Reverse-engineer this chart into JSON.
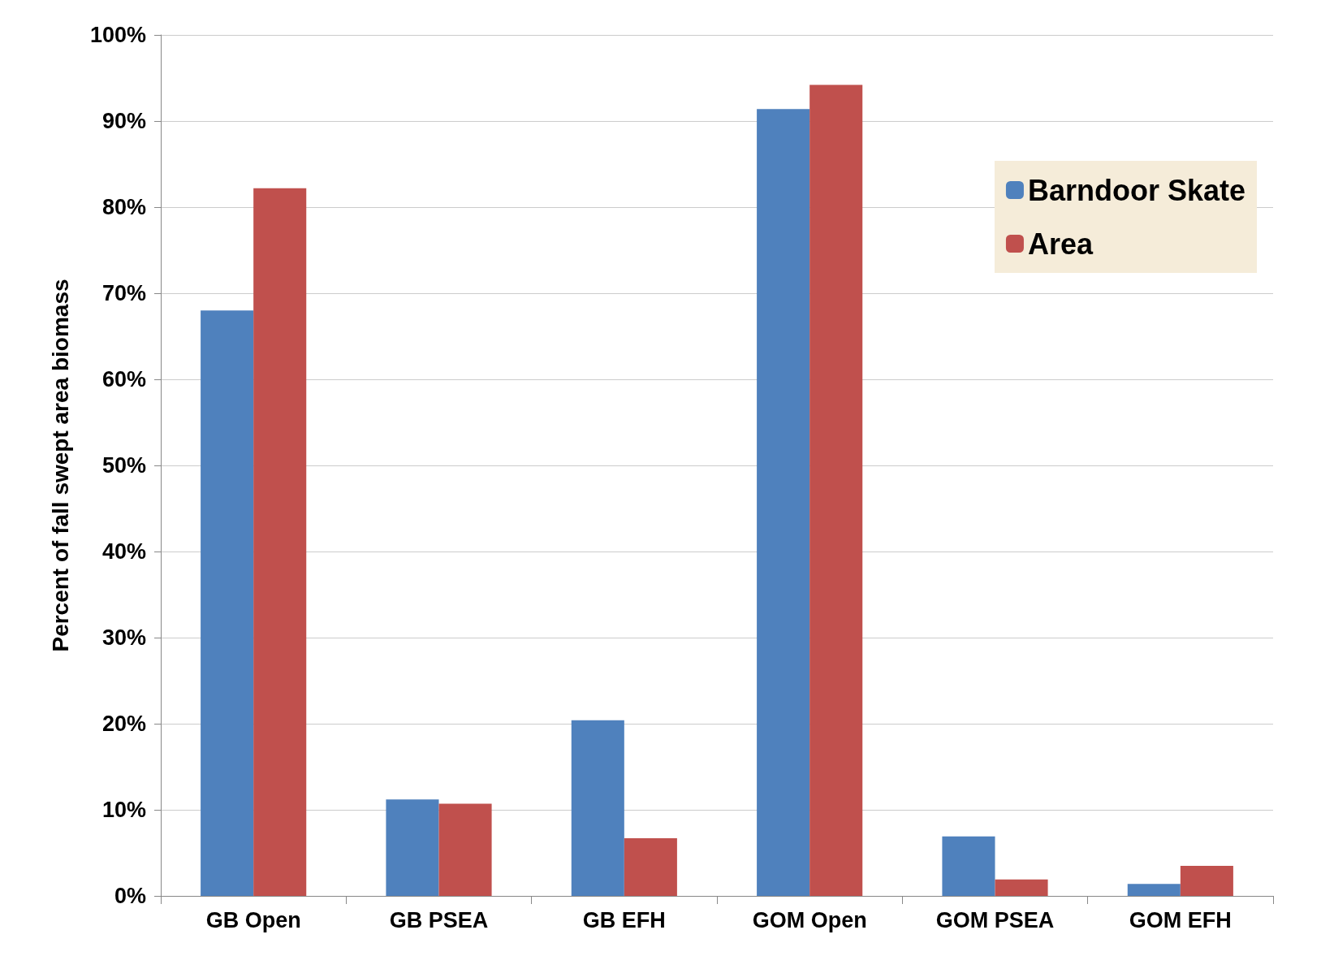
{
  "chart_data": {
    "type": "bar",
    "ylabel": "Percent of fall swept area biomass",
    "categories": [
      "GB Open",
      "GB PSEA",
      "GB EFH",
      "GOM Open",
      "GOM PSEA",
      "GOM EFH"
    ],
    "series": [
      {
        "name": "Barndoor Skate",
        "color": "#4f81bd",
        "values": [
          68,
          11.2,
          20.4,
          91.4,
          6.9,
          1.4
        ]
      },
      {
        "name": "Area",
        "color": "#c0504d",
        "values": [
          82.2,
          10.7,
          6.7,
          94.2,
          1.9,
          3.5
        ]
      }
    ],
    "ylim": [
      0,
      100
    ],
    "yticks": [
      {
        "value": 0,
        "label": "0%"
      },
      {
        "value": 10,
        "label": "10%"
      },
      {
        "value": 20,
        "label": "20%"
      },
      {
        "value": 30,
        "label": "30%"
      },
      {
        "value": 40,
        "label": "40%"
      },
      {
        "value": 50,
        "label": "50%"
      },
      {
        "value": 60,
        "label": "60%"
      },
      {
        "value": 70,
        "label": "70%"
      },
      {
        "value": 80,
        "label": "80%"
      },
      {
        "value": 90,
        "label": "90%"
      },
      {
        "value": 100,
        "label": "100%"
      }
    ],
    "grid": "y",
    "legend": "top right"
  }
}
